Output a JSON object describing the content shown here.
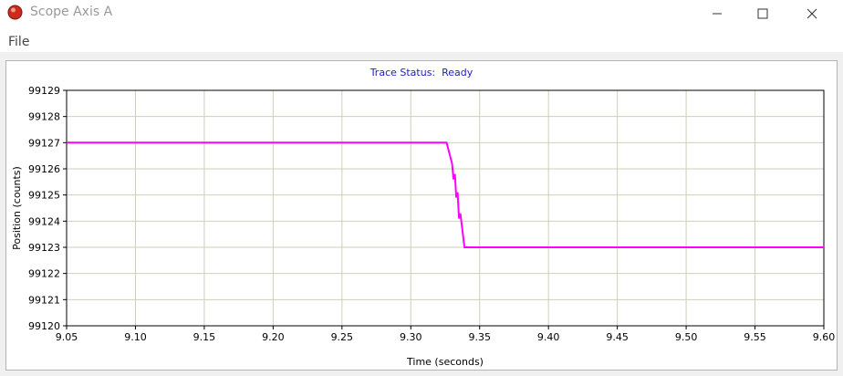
{
  "window": {
    "title": "Scope Axis A"
  },
  "menu": {
    "file_label": "File"
  },
  "status": {
    "label": "Trace Status:",
    "value": "Ready"
  },
  "colors": {
    "trace": "#ff00ff",
    "grid": "#cfcfb8",
    "status_text": "#2020c0"
  },
  "chart_data": {
    "type": "line",
    "xlabel": "Time (seconds)",
    "ylabel": "Position (counts)",
    "xlim": [
      9.05,
      9.6
    ],
    "ylim": [
      99120,
      99129
    ],
    "xticks": [
      "9.05",
      "9.10",
      "9.15",
      "9.20",
      "9.25",
      "9.30",
      "9.35",
      "9.40",
      "9.45",
      "9.50",
      "9.55",
      "9.60"
    ],
    "yticks": [
      "99120",
      "99121",
      "99122",
      "99123",
      "99124",
      "99125",
      "99126",
      "99127",
      "99128",
      "99129"
    ],
    "grid": true,
    "series": [
      {
        "x": [
          9.05,
          9.326,
          9.33,
          9.331,
          9.332,
          9.333,
          9.334,
          9.335,
          9.336,
          9.339,
          9.6
        ],
        "y": [
          99127,
          99127,
          99126.2,
          99125.6,
          99125.8,
          99124.9,
          99125.1,
          99124.1,
          99124.3,
          99123,
          99123
        ]
      }
    ]
  }
}
